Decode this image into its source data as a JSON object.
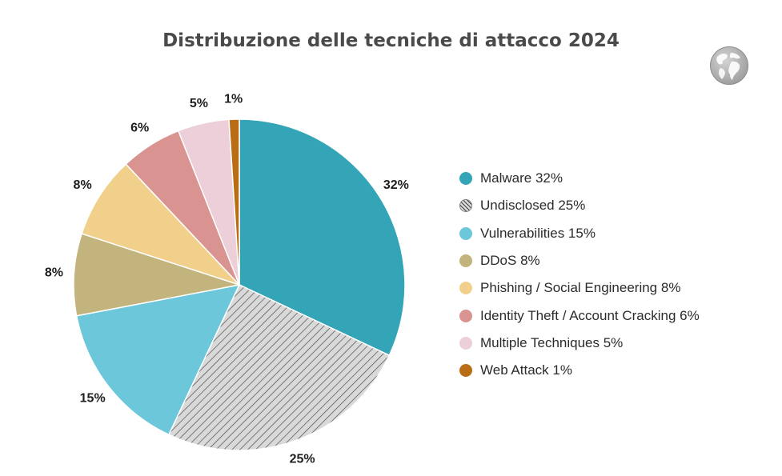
{
  "chart_data": {
    "type": "pie",
    "title": "Distribuzione delle tecniche di attacco 2024",
    "slices": [
      {
        "label": "Malware",
        "value": 32,
        "value_label": "32%",
        "legend": "Malware 32%",
        "color": "#34a5b7",
        "pattern": null
      },
      {
        "label": "Undisclosed",
        "value": 25,
        "value_label": "25%",
        "legend": "Undisclosed 25%",
        "color": "#d9d9d9",
        "pattern": "hatch"
      },
      {
        "label": "Vulnerabilities",
        "value": 15,
        "value_label": "15%",
        "legend": "Vulnerabilities 15%",
        "color": "#6cc7db",
        "pattern": null
      },
      {
        "label": "DDoS",
        "value": 8,
        "value_label": "8%",
        "legend": "DDoS 8%",
        "color": "#c3b37c",
        "pattern": null
      },
      {
        "label": "Phishing / Social Engineering",
        "value": 8,
        "value_label": "8%",
        "legend": "Phishing / Social Engineering 8%",
        "color": "#f1d08b",
        "pattern": null
      },
      {
        "label": "Identity Theft / Account Cracking",
        "value": 6,
        "value_label": "6%",
        "legend": "Identity Theft / Account Cracking 6%",
        "color": "#d99390",
        "pattern": null
      },
      {
        "label": "Multiple Techniques",
        "value": 5,
        "value_label": "5%",
        "legend": "Multiple Techniques 5%",
        "color": "#eccfd8",
        "pattern": null
      },
      {
        "label": "Web Attack",
        "value": 1,
        "value_label": "1%",
        "legend": "Web Attack 1%",
        "color": "#b96e16",
        "pattern": null
      }
    ],
    "start": "top, clockwise",
    "legend_position": "right"
  },
  "icons": {
    "corner": "globe-icon"
  }
}
